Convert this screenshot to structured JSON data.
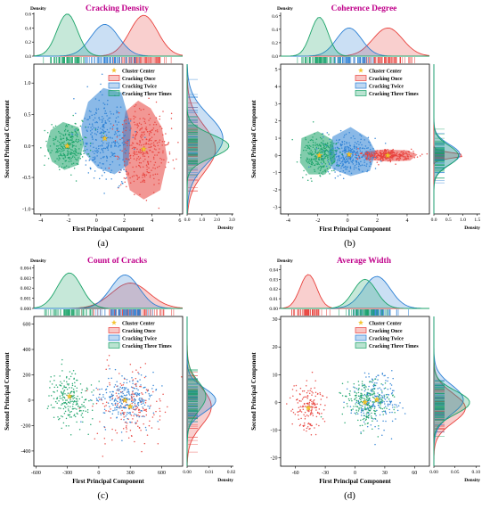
{
  "figure": {
    "colors": {
      "once": "#e8413c",
      "twice": "#2a7fd4",
      "three": "#1aa368",
      "center": "#f4c430",
      "title": "#c0008a"
    }
  },
  "chart_data": [
    {
      "type": "scatter",
      "panel_label": "(a)",
      "title": "Cracking Density",
      "xlabel": "First Principal Component",
      "ylabel": "Second Principal Component",
      "density_label": "Density",
      "xlim": [
        -4.5,
        6.2
      ],
      "ylim": [
        -1.08,
        1.3
      ],
      "xticks": [
        -4,
        -2,
        0,
        2,
        4,
        6
      ],
      "yticks": [
        -1.0,
        -0.5,
        0.0,
        0.5,
        1.0
      ],
      "ytick_labels": [
        "-1.0",
        "-0.5",
        "0.0",
        "0.5",
        "1.0"
      ],
      "top_density_ticks": [
        0.0,
        0.2,
        0.4,
        0.6
      ],
      "top_density_labels": [
        "0.0",
        "0.2",
        "0.4",
        "0.6"
      ],
      "top_density_max": 0.62,
      "right_density_ticks": [
        0.0,
        1.0,
        2.0,
        3.0
      ],
      "right_density_labels": [
        "0.0",
        "1.0",
        "2.0",
        "3.0"
      ],
      "right_density_max": 3.1,
      "legend": [
        "Cluster Center",
        "Cracking Once",
        "Cracking Twice",
        "Cracking Three Times"
      ],
      "clusters": [
        {
          "name": "Cracking Once",
          "center": [
            3.4,
            -0.05
          ],
          "sx": 0.95,
          "sy": 0.35,
          "n": 330,
          "hull": [
            [
              2.1,
              0.55
            ],
            [
              3.0,
              0.72
            ],
            [
              3.9,
              0.6
            ],
            [
              4.7,
              0.3
            ],
            [
              5.1,
              -0.2
            ],
            [
              4.6,
              -0.7
            ],
            [
              3.4,
              -0.85
            ],
            [
              2.4,
              -0.7
            ],
            [
              1.9,
              -0.2
            ],
            [
              1.9,
              0.3
            ]
          ],
          "top_peak": 0.58,
          "right_peak": 1.9
        },
        {
          "name": "Cracking Twice",
          "center": [
            0.6,
            0.12
          ],
          "sx": 0.95,
          "sy": 0.35,
          "n": 300,
          "hull": [
            [
              -0.6,
              0.7
            ],
            [
              0.5,
              0.92
            ],
            [
              1.8,
              0.85
            ],
            [
              2.5,
              0.3
            ],
            [
              2.3,
              -0.3
            ],
            [
              1.3,
              -0.45
            ],
            [
              0.1,
              -0.35
            ],
            [
              -0.9,
              -0.1
            ],
            [
              -1.1,
              0.3
            ]
          ],
          "top_peak": 0.45,
          "right_peak": 2.4
        },
        {
          "name": "Cracking Three Times",
          "center": [
            -2.1,
            0.0
          ],
          "sx": 0.7,
          "sy": 0.17,
          "n": 260,
          "hull": [
            [
              -3.3,
              0.25
            ],
            [
              -2.4,
              0.38
            ],
            [
              -1.3,
              0.3
            ],
            [
              -0.9,
              0.05
            ],
            [
              -1.3,
              -0.3
            ],
            [
              -2.3,
              -0.38
            ],
            [
              -3.2,
              -0.25
            ],
            [
              -3.6,
              0.0
            ]
          ],
          "top_peak": 0.6,
          "right_peak": 2.8
        }
      ]
    },
    {
      "type": "scatter",
      "panel_label": "(b)",
      "title": "Coherence Degree",
      "xlabel": "First Principal Component",
      "ylabel": "Second Principal Component",
      "density_label": "Density",
      "xlim": [
        -4.5,
        5.5
      ],
      "ylim": [
        -3.4,
        5.3
      ],
      "xticks": [
        -4,
        -2,
        0,
        2,
        4
      ],
      "yticks": [
        -3,
        -2,
        -1,
        0,
        1,
        2,
        3,
        4,
        5
      ],
      "ytick_labels": [
        "-3",
        "-2",
        "-1",
        "0",
        "1",
        "2",
        "3",
        "4",
        "5"
      ],
      "top_density_ticks": [
        0.0,
        0.2,
        0.4,
        0.6
      ],
      "top_density_labels": [
        "0.0",
        "0.2",
        "0.4",
        "0.6"
      ],
      "top_density_max": 0.65,
      "right_density_ticks": [
        0.0,
        0.5,
        1.0,
        1.5
      ],
      "right_density_labels": [
        "0.0",
        "0.5",
        "1.0",
        "1.5"
      ],
      "right_density_max": 1.6,
      "legend": [
        "Cluster Center",
        "Cracking Once",
        "Cracking Twice",
        "Cracking Three Times"
      ],
      "clusters": [
        {
          "name": "Cracking Once",
          "center": [
            2.7,
            0.0
          ],
          "sx": 0.95,
          "sy": 0.15,
          "n": 320,
          "hull": [
            [
              1.2,
              0.25
            ],
            [
              2.5,
              0.35
            ],
            [
              4.0,
              0.3
            ],
            [
              4.7,
              0.05
            ],
            [
              4.2,
              -0.3
            ],
            [
              2.6,
              -0.35
            ],
            [
              1.3,
              -0.25
            ],
            [
              1.0,
              0.0
            ]
          ],
          "top_peak": 0.42,
          "right_peak": 1.05
        },
        {
          "name": "Cracking Twice",
          "center": [
            0.1,
            0.05
          ],
          "sx": 0.8,
          "sy": 0.55,
          "n": 300,
          "hull": [
            [
              -1.0,
              1.1
            ],
            [
              0.2,
              1.65
            ],
            [
              1.4,
              1.0
            ],
            [
              1.9,
              0.2
            ],
            [
              1.5,
              -0.9
            ],
            [
              0.2,
              -1.2
            ],
            [
              -1.0,
              -0.8
            ],
            [
              -1.3,
              0.1
            ]
          ],
          "top_peak": 0.42,
          "right_peak": 0.9
        },
        {
          "name": "Cracking Three Times",
          "center": [
            -1.9,
            0.0
          ],
          "sx": 0.55,
          "sy": 0.55,
          "n": 260,
          "hull": [
            [
              -3.1,
              1.0
            ],
            [
              -2.0,
              1.4
            ],
            [
              -1.0,
              0.9
            ],
            [
              -0.8,
              -0.3
            ],
            [
              -1.5,
              -1.1
            ],
            [
              -2.6,
              -1.1
            ],
            [
              -3.2,
              -0.4
            ]
          ],
          "top_peak": 0.58,
          "right_peak": 0.85
        }
      ]
    },
    {
      "type": "scatter",
      "panel_label": "(c)",
      "title": "Count of Cracks",
      "xlabel": "First Principal Component",
      "ylabel": "Second Principal Component",
      "density_label": "Density",
      "xlim": [
        -620,
        800
      ],
      "ylim": [
        -520,
        660
      ],
      "xticks": [
        -600,
        -300,
        0,
        300,
        600
      ],
      "yticks": [
        -400,
        -200,
        0,
        200,
        400,
        600
      ],
      "ytick_labels": [
        "-400",
        "-200",
        "0",
        "200",
        "400",
        "600"
      ],
      "top_density_ticks": [
        0.0,
        0.001,
        0.002,
        0.003,
        0.004
      ],
      "top_density_labels": [
        "0.000",
        "0.001",
        "0.002",
        "0.003",
        "0.004"
      ],
      "top_density_max": 0.0043,
      "right_density_ticks": [
        0.0,
        0.01,
        0.02
      ],
      "right_density_labels": [
        "0.00",
        "0.01",
        "0.02"
      ],
      "right_density_max": 0.021,
      "legend": [
        "Cluster Center",
        "Cracking Once",
        "Cracking Twice",
        "Cracking Three Times"
      ],
      "clusters": [
        {
          "name": "Cracking Once",
          "center": [
            300,
            -50
          ],
          "sx": 170,
          "sy": 140,
          "n": 180,
          "hull": [],
          "top_peak": 0.0025,
          "right_peak": 0.011
        },
        {
          "name": "Cracking Twice",
          "center": [
            250,
            0
          ],
          "sx": 130,
          "sy": 90,
          "n": 260,
          "hull": [],
          "top_peak": 0.0033,
          "right_peak": 0.013
        },
        {
          "name": "Cracking Three Times",
          "center": [
            -280,
            30
          ],
          "sx": 110,
          "sy": 110,
          "n": 220,
          "hull": [],
          "top_peak": 0.0035,
          "right_peak": 0.0085
        }
      ]
    },
    {
      "type": "scatter",
      "panel_label": "(d)",
      "title": "Average Width",
      "xlabel": "First Principal Component",
      "ylabel": "Second Principal Component",
      "density_label": "Density",
      "xlim": [
        -75,
        75
      ],
      "ylim": [
        -23,
        31
      ],
      "xticks": [
        -60,
        -30,
        0,
        30,
        60
      ],
      "yticks": [
        -20,
        -10,
        0,
        10,
        20,
        30
      ],
      "ytick_labels": [
        "-20",
        "-10",
        "0",
        "10",
        "20",
        "30"
      ],
      "top_density_ticks": [
        0.0,
        0.01,
        0.02,
        0.03,
        0.04
      ],
      "top_density_labels": [
        "0.00",
        "0.01",
        "0.02",
        "0.03",
        "0.04"
      ],
      "top_density_max": 0.045,
      "right_density_ticks": [
        0.0,
        0.05,
        0.1
      ],
      "right_density_labels": [
        "0.00",
        "0.05",
        "0.10"
      ],
      "right_density_max": 0.11,
      "legend": [
        "Cluster Center",
        "Cracking Once",
        "Cracking Twice",
        "Cracking Three Times"
      ],
      "clusters": [
        {
          "name": "Cracking Once",
          "center": [
            -47,
            -2
          ],
          "sx": 8,
          "sy": 5,
          "n": 160,
          "hull": [],
          "top_peak": 0.035,
          "right_peak": 0.075
        },
        {
          "name": "Cracking Twice",
          "center": [
            22,
            1
          ],
          "sx": 13,
          "sy": 5,
          "n": 200,
          "hull": [],
          "top_peak": 0.033,
          "right_peak": 0.07
        },
        {
          "name": "Cracking Three Times",
          "center": [
            10,
            0
          ],
          "sx": 11,
          "sy": 4,
          "n": 230,
          "hull": [],
          "top_peak": 0.03,
          "right_peak": 0.085
        }
      ]
    }
  ]
}
